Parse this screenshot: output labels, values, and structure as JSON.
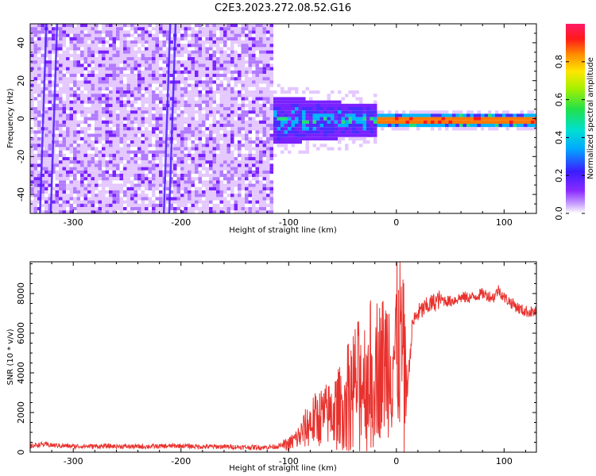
{
  "title": "C2E3.2023.272.08.52.G16",
  "colors": {
    "snr_line": "#e8322e",
    "spectrogram_background": "#ffffff",
    "colormap": [
      "#ffffff",
      "#e9d0ff",
      "#b27bff",
      "#6b17ff",
      "#4b2cff",
      "#00c8ff",
      "#22e07a",
      "#ffe600",
      "#ff7a00",
      "#ff1a2e",
      "#ff1a66"
    ]
  },
  "chart_data": [
    {
      "type": "heatmap",
      "title": "",
      "xlabel": "Height of straight line (km)",
      "ylabel": "Frequency (Hz)",
      "xlim": [
        -340,
        130
      ],
      "ylim": [
        -50,
        50
      ],
      "xticks": [
        -300,
        -200,
        -100,
        0,
        100
      ],
      "yticks": [
        -40,
        -20,
        0,
        20,
        40
      ],
      "grid": false,
      "colorbar": {
        "label": "Normalized spectral amplitude",
        "range": [
          0,
          1
        ],
        "ticks": [
          0.0,
          0.2,
          0.4,
          0.6,
          0.8
        ]
      },
      "features": [
        {
          "x_range": [
            -340,
            -115
          ],
          "freq_range": [
            -50,
            50
          ],
          "amplitude": 0.12,
          "description_value": "broadband noise"
        },
        {
          "x_range": [
            -115,
            -20
          ],
          "freq_range": [
            -8,
            8
          ],
          "amplitude": 0.4
        },
        {
          "x_range": [
            -30,
            130
          ],
          "freq_range": [
            -2,
            2
          ],
          "amplitude": 0.9
        }
      ],
      "streaks_x": [
        -325,
        -315,
        -210,
        -205
      ]
    },
    {
      "type": "line",
      "title": "",
      "xlabel": "Height of straight line (km)",
      "ylabel": "SNR (10 * v/v)",
      "xlim": [
        -340,
        130
      ],
      "ylim": [
        0,
        9600
      ],
      "xticks": [
        -300,
        -200,
        -100,
        0,
        100
      ],
      "yticks": [
        0,
        2000,
        4000,
        6000,
        8000
      ],
      "grid": false,
      "series": [
        {
          "x": [
            -340,
            -330,
            -320,
            -300,
            -280,
            -260,
            -240,
            -220,
            -200,
            -180,
            -160,
            -140,
            -120,
            -110,
            -100,
            -90,
            -80,
            -70,
            -60,
            -50,
            -40,
            -30,
            -20,
            -15,
            -10,
            -5,
            0,
            5,
            10,
            15,
            20,
            30,
            40,
            50,
            60,
            70,
            80,
            90,
            95,
            100,
            105,
            110,
            115,
            120,
            130
          ],
          "values": [
            300,
            400,
            350,
            300,
            300,
            300,
            280,
            300,
            320,
            280,
            280,
            250,
            250,
            300,
            400,
            800,
            1500,
            1800,
            2000,
            2500,
            3500,
            3800,
            4500,
            4200,
            4600,
            4900,
            5200,
            5600,
            3000,
            6500,
            7000,
            7400,
            7700,
            7600,
            7800,
            7800,
            8000,
            7800,
            8200,
            7800,
            7600,
            7400,
            7200,
            7100,
            7050
          ]
        }
      ]
    }
  ]
}
